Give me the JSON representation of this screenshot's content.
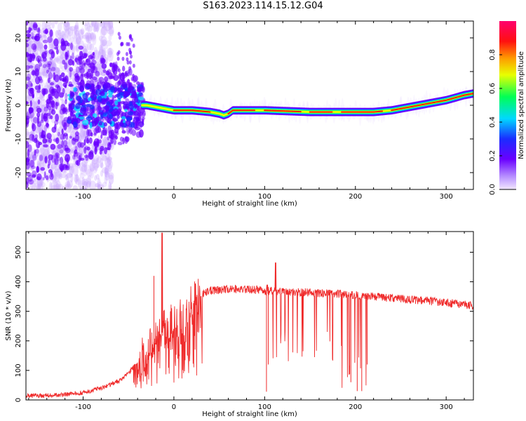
{
  "figure": {
    "title": "S163.2023.114.15.12.G04"
  },
  "chart_data": [
    {
      "type": "heatmap",
      "xlabel": "Height of straight line (km)",
      "ylabel": "Frequency (Hz)",
      "xlim": [
        -163,
        330
      ],
      "ylim": [
        -25,
        25
      ],
      "xticks": [
        -100,
        0,
        100,
        200,
        300
      ],
      "yticks": [
        -20,
        -10,
        0,
        10,
        20
      ],
      "colorbar": {
        "label": "Normalized spectral amplitude",
        "range": [
          0,
          1
        ],
        "ticks": [
          "0.0",
          "0.2",
          "0.4",
          "0.6",
          "0.8"
        ],
        "colormap": "rainbow (white-lavender to purple, blue, cyan, green, yellow, orange, red, magenta)"
      },
      "ridge": {
        "x": [
          -30,
          -10,
          0,
          20,
          40,
          50,
          55,
          60,
          65,
          80,
          100,
          150,
          180,
          200,
          220,
          240,
          260,
          280,
          300,
          320,
          330
        ],
        "frequency": [
          0,
          -1,
          -1.5,
          -1.5,
          -2,
          -2.5,
          -3,
          -2.5,
          -1.5,
          -1.5,
          -1.5,
          -2,
          -2,
          -2,
          -2,
          -1.5,
          -0.5,
          0.5,
          1.5,
          3,
          3.5
        ]
      }
    },
    {
      "type": "line",
      "xlabel": "Height of straight line (km)",
      "ylabel": "SNR (10 * v/v)",
      "xlim": [
        -163,
        330
      ],
      "ylim": [
        0,
        570
      ],
      "xticks": [
        -100,
        0,
        100,
        200,
        300
      ],
      "yticks": [
        0,
        100,
        200,
        300,
        400,
        500
      ],
      "series": [
        {
          "color": "#ef2a2a",
          "envelope_x": [
            -163,
            -140,
            -120,
            -100,
            -80,
            -60,
            -50,
            -40,
            -30,
            -20,
            -10,
            0,
            10,
            20,
            30,
            40,
            60,
            80,
            100,
            120,
            140,
            160,
            180,
            200,
            220,
            240,
            260,
            280,
            300,
            320,
            330
          ],
          "envelope_y": [
            15,
            15,
            18,
            25,
            40,
            65,
            90,
            130,
            160,
            200,
            240,
            260,
            280,
            320,
            360,
            370,
            375,
            375,
            370,
            365,
            365,
            362,
            360,
            355,
            350,
            345,
            340,
            335,
            330,
            322,
            318
          ],
          "spikes": [
            {
              "x": -13,
              "y": 565
            },
            {
              "x": -22,
              "y": 420
            },
            {
              "x": 112,
              "y": 465
            },
            {
              "x": 103,
              "y": 390
            }
          ],
          "dips": [
            {
              "x": 102,
              "y": 28
            },
            {
              "x": 104,
              "y": 120
            },
            {
              "x": 195,
              "y": 60
            },
            {
              "x": 202,
              "y": 30
            },
            {
              "x": 207,
              "y": 30
            },
            {
              "x": 213,
              "y": 120
            }
          ]
        }
      ]
    }
  ]
}
